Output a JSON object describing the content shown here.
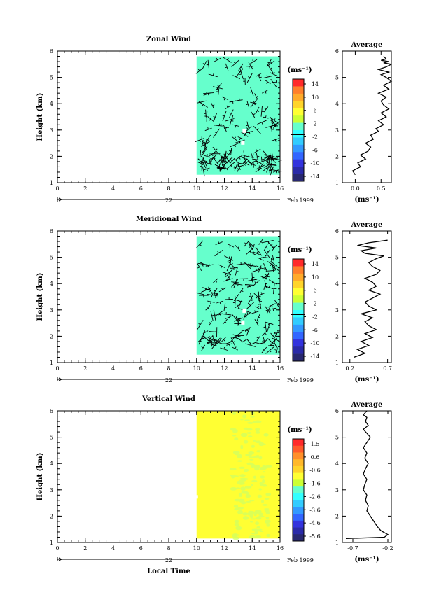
{
  "chart_data": [
    {
      "type": "heatmap",
      "title": "Zonal Wind",
      "ylabel": "Height (km)",
      "xlabel": "",
      "xlim": [
        0,
        16
      ],
      "ylim": [
        1,
        6
      ],
      "x_ticks": [
        "0",
        "2",
        "4",
        "6",
        "8",
        "10",
        "12",
        "14",
        "16"
      ],
      "y_ticks": [
        "1",
        "2",
        "3",
        "4",
        "5",
        "6"
      ],
      "date_marker": "22",
      "date_label": "Feb 1999",
      "data_extent": {
        "x": [
          10.0,
          16.0
        ],
        "y": [
          1.3,
          5.8
        ]
      },
      "fill_color": "#66ffcc",
      "colorbar": {
        "unit": "(ms⁻¹)",
        "tick_labels": [
          "14",
          "10",
          "6",
          "2",
          "-2",
          "-6",
          "-10",
          "-14"
        ],
        "colors": [
          "#ff2a2a",
          "#ff7f2a",
          "#ffaa2a",
          "#ffd42a",
          "#ffff33",
          "#ccff33",
          "#66ffcc",
          "#33ffff",
          "#33ccff",
          "#3399ff",
          "#3366ff",
          "#3333dd",
          "#2a2aa8",
          "#282870"
        ]
      },
      "profile": {
        "title": "Average",
        "xlabel": "(ms⁻¹)",
        "x_ticks": [
          "0.0",
          "0.5"
        ],
        "xlim": [
          -0.25,
          0.7
        ],
        "ylim": [
          1,
          6
        ],
        "x": [
          0.0,
          -0.05,
          0.1,
          0.05,
          0.2,
          0.1,
          0.25,
          0.3,
          0.2,
          0.35,
          0.3,
          0.45,
          0.4,
          0.55,
          0.45,
          0.6,
          0.5,
          0.65,
          0.55,
          0.5,
          0.6,
          0.45,
          0.65,
          0.55,
          0.7,
          0.6,
          0.5,
          0.65,
          0.45,
          0.6,
          0.7,
          0.55,
          0.65,
          0.5,
          0.6,
          0.55
        ],
        "y": [
          1.3,
          1.45,
          1.6,
          1.75,
          1.9,
          2.05,
          2.2,
          2.35,
          2.5,
          2.65,
          2.8,
          2.95,
          3.05,
          3.2,
          3.35,
          3.5,
          3.65,
          3.8,
          3.95,
          4.1,
          4.25,
          4.4,
          4.55,
          4.7,
          4.85,
          5.0,
          5.1,
          5.2,
          5.3,
          5.4,
          5.5,
          5.55,
          5.6,
          5.65,
          5.7,
          5.8
        ]
      }
    },
    {
      "type": "heatmap",
      "title": "Meridional Wind",
      "ylabel": "Height (km)",
      "xlabel": "",
      "xlim": [
        0,
        16
      ],
      "ylim": [
        1,
        6
      ],
      "x_ticks": [
        "0",
        "2",
        "4",
        "6",
        "8",
        "10",
        "12",
        "14",
        "16"
      ],
      "y_ticks": [
        "1",
        "2",
        "3",
        "4",
        "5",
        "6"
      ],
      "date_marker": "22",
      "date_label": "Feb 1999",
      "data_extent": {
        "x": [
          10.0,
          16.0
        ],
        "y": [
          1.3,
          5.8
        ]
      },
      "fill_color": "#66ffcc",
      "colorbar": {
        "unit": "(ms⁻¹)",
        "tick_labels": [
          "14",
          "10",
          "6",
          "2",
          "-2",
          "-6",
          "-10",
          "-14"
        ],
        "colors": [
          "#ff2a2a",
          "#ff7f2a",
          "#ffaa2a",
          "#ffd42a",
          "#ffff33",
          "#ccff33",
          "#66ffcc",
          "#33ffff",
          "#33ccff",
          "#3399ff",
          "#3366ff",
          "#3333dd",
          "#2a2aa8",
          "#282870"
        ]
      },
      "profile": {
        "title": "Average",
        "xlabel": "(ms⁻¹)",
        "x_ticks": [
          "0.2",
          "0.7"
        ],
        "xlim": [
          0.1,
          0.75
        ],
        "ylim": [
          1,
          6
        ],
        "x": [
          0.25,
          0.4,
          0.3,
          0.45,
          0.35,
          0.5,
          0.4,
          0.55,
          0.45,
          0.4,
          0.5,
          0.35,
          0.55,
          0.45,
          0.4,
          0.5,
          0.6,
          0.45,
          0.55,
          0.5,
          0.4,
          0.55,
          0.6,
          0.5,
          0.45,
          0.55,
          0.65,
          0.4,
          0.35,
          0.55,
          0.3,
          0.45,
          0.7
        ],
        "y": [
          1.2,
          1.35,
          1.5,
          1.65,
          1.8,
          1.95,
          2.1,
          2.25,
          2.4,
          2.55,
          2.7,
          2.85,
          3.0,
          3.15,
          3.3,
          3.45,
          3.6,
          3.75,
          3.9,
          4.05,
          4.2,
          4.35,
          4.5,
          4.65,
          4.8,
          4.95,
          5.05,
          5.15,
          5.25,
          5.35,
          5.45,
          5.55,
          5.65
        ]
      }
    },
    {
      "type": "heatmap",
      "title": "Vertical Wind",
      "ylabel": "Height (km)",
      "xlabel": "Local Time",
      "xlim": [
        0,
        16
      ],
      "ylim": [
        1,
        6
      ],
      "x_ticks": [
        "0",
        "2",
        "4",
        "6",
        "8",
        "10",
        "12",
        "14",
        "16"
      ],
      "y_ticks": [
        "1",
        "2",
        "3",
        "4",
        "5",
        "6"
      ],
      "date_marker": "22",
      "date_label": "Feb 1999",
      "data_extent": {
        "x": [
          10.0,
          16.0
        ],
        "y": [
          1.15,
          6.0
        ]
      },
      "fill_color": "#ffff33",
      "colorbar": {
        "unit": "(ms⁻¹)",
        "tick_labels": [
          "1.5",
          "0.6",
          "-0.6",
          "-1.6",
          "-2.6",
          "-3.6",
          "-4.6",
          "-5.6"
        ],
        "colors": [
          "#ff2a2a",
          "#ff5a2a",
          "#ff8f2a",
          "#ffb82a",
          "#ffd42a",
          "#ffff33",
          "#ccff33",
          "#66ffcc",
          "#33ffff",
          "#33ccff",
          "#3399ff",
          "#3366ff",
          "#3333dd",
          "#2a2aa8",
          "#282870"
        ]
      },
      "profile": {
        "title": "Average",
        "xlabel": "(ms⁻¹)",
        "x_ticks": [
          "-0.7",
          "-0.2"
        ],
        "xlim": [
          -0.85,
          -0.15
        ],
        "ylim": [
          1,
          6
        ],
        "x": [
          -0.8,
          -0.25,
          -0.2,
          -0.3,
          -0.35,
          -0.4,
          -0.45,
          -0.5,
          -0.48,
          -0.52,
          -0.5,
          -0.55,
          -0.53,
          -0.5,
          -0.55,
          -0.52,
          -0.48,
          -0.53,
          -0.5,
          -0.55,
          -0.5,
          -0.45,
          -0.5,
          -0.55,
          -0.48,
          -0.52,
          -0.5,
          -0.55,
          -0.5
        ],
        "y": [
          1.15,
          1.2,
          1.3,
          1.45,
          1.6,
          1.8,
          2.0,
          2.2,
          2.4,
          2.6,
          2.8,
          3.0,
          3.2,
          3.4,
          3.6,
          3.8,
          4.0,
          4.2,
          4.4,
          4.6,
          4.8,
          5.0,
          5.15,
          5.3,
          5.45,
          5.6,
          5.75,
          5.85,
          6.0
        ]
      }
    }
  ]
}
